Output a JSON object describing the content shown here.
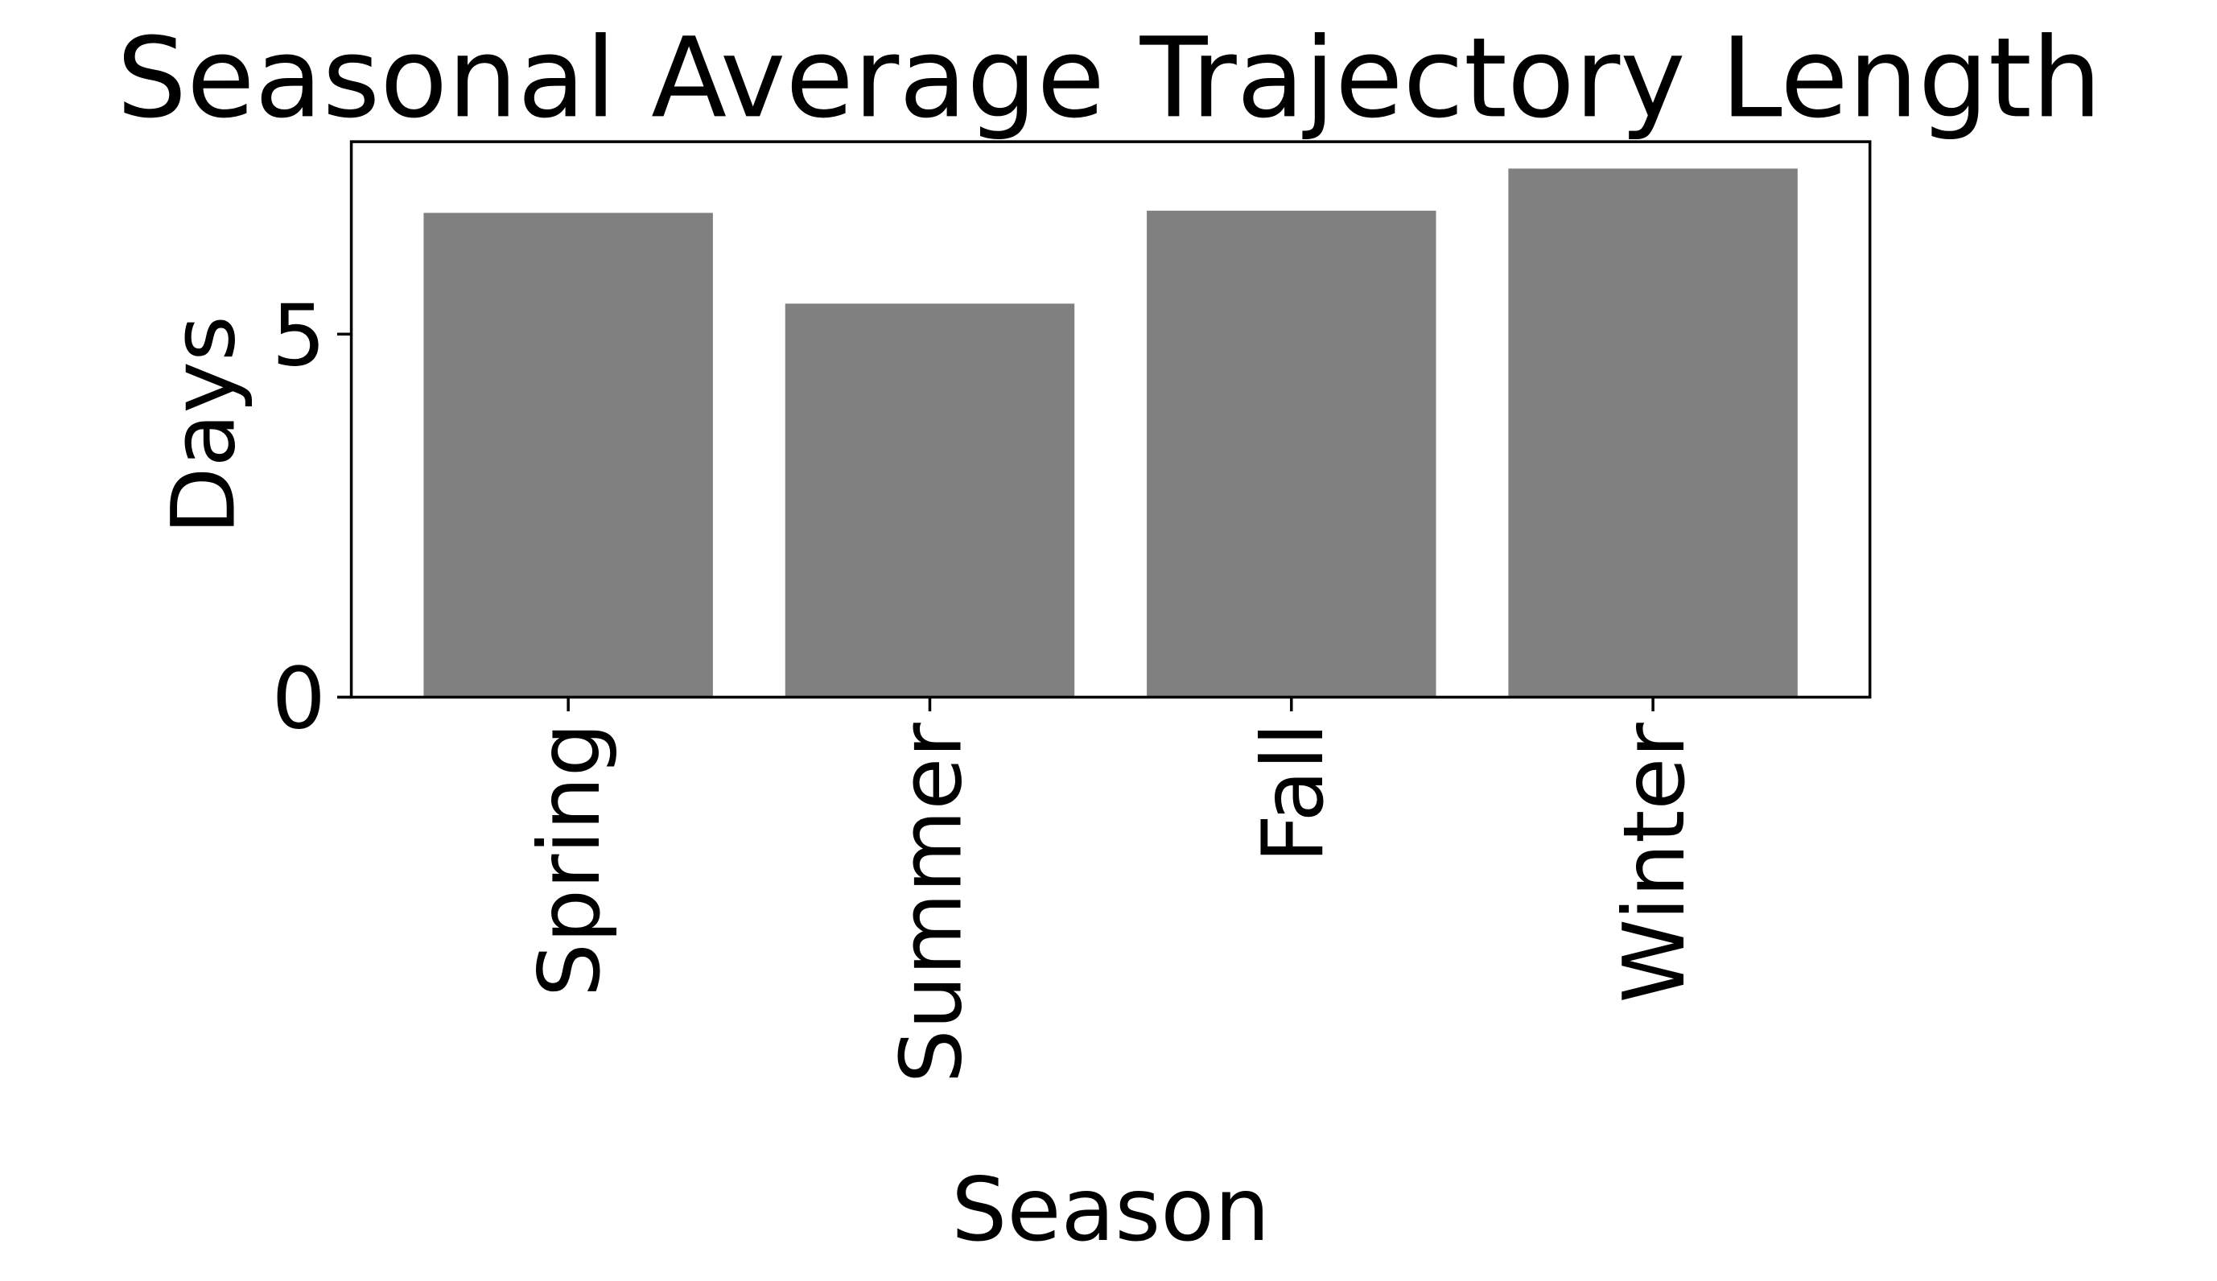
{
  "chart_data": {
    "type": "bar",
    "title": "Seasonal Average Trajectory Length",
    "xlabel": "Season",
    "ylabel": "Days",
    "categories": [
      "Spring",
      "Summer",
      "Fall",
      "Winter"
    ],
    "values": [
      6.67,
      5.42,
      6.7,
      7.28
    ],
    "ylim": [
      0,
      7.65
    ],
    "yticks": [
      0,
      5
    ],
    "ytick_labels": [
      "0",
      "5"
    ],
    "bar_color": "#808080",
    "grid": false,
    "legend": "none"
  }
}
